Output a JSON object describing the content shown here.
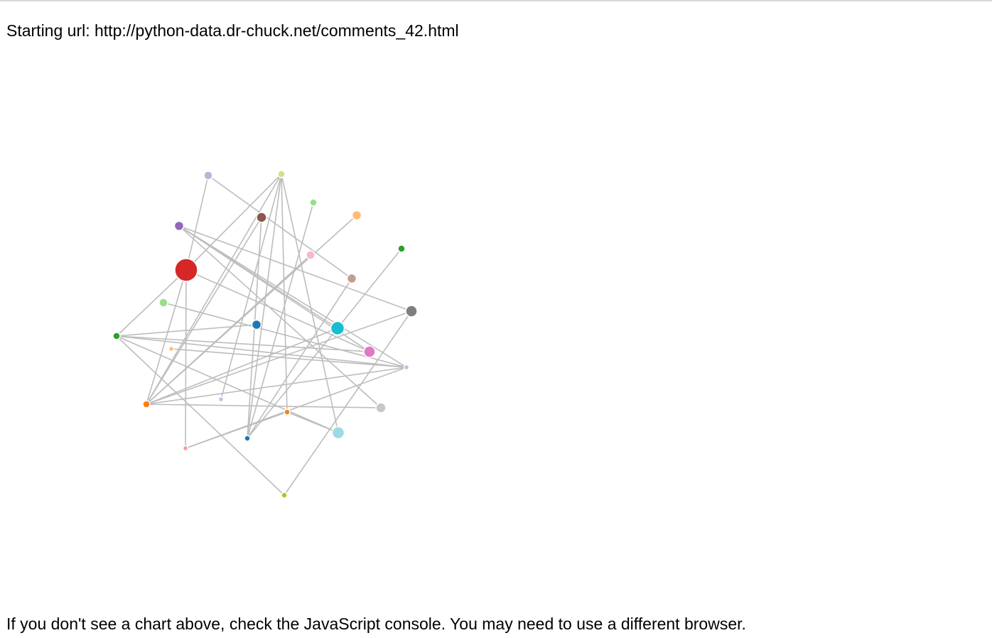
{
  "header": {
    "starting_url": "Starting url: http://python-data.dr-chuck.net/comments_42.html"
  },
  "footer": {
    "note": "If you don't see a chart above, check the JavaScript console. You may need to use a different browser."
  },
  "graph": {
    "nodes": [
      {
        "id": "n0",
        "color": "#c5b0d5",
        "size": 1.2
      },
      {
        "id": "n1",
        "color": "#dbdb8d",
        "size": 1.0
      },
      {
        "id": "n2",
        "color": "#98df8a",
        "size": 1.0
      },
      {
        "id": "n3",
        "color": "#ffbb78",
        "size": 1.3
      },
      {
        "id": "n4",
        "color": "#8c564b",
        "size": 1.4
      },
      {
        "id": "n5",
        "color": "#9467bd",
        "size": 1.3
      },
      {
        "id": "n6",
        "color": "#2ca02c",
        "size": 1.0
      },
      {
        "id": "n7",
        "color": "#f7b6d2",
        "size": 1.2
      },
      {
        "id": "n8",
        "color": "#d62728",
        "size": 3.2
      },
      {
        "id": "n9",
        "color": "#c49c94",
        "size": 1.3
      },
      {
        "id": "n10",
        "color": "#98df8a",
        "size": 1.2
      },
      {
        "id": "n11",
        "color": "#7f7f7f",
        "size": 1.6
      },
      {
        "id": "n12",
        "color": "#1f77b4",
        "size": 1.3
      },
      {
        "id": "n13",
        "color": "#17becf",
        "size": 1.9
      },
      {
        "id": "n14",
        "color": "#2ca02c",
        "size": 1.0
      },
      {
        "id": "n15",
        "color": "#ffbb78",
        "size": 0.7
      },
      {
        "id": "n16",
        "color": "#e377c2",
        "size": 1.6
      },
      {
        "id": "n17",
        "color": "#aec7e8",
        "size": 0.7
      },
      {
        "id": "n18",
        "color": "#ff7f0e",
        "size": 1.0
      },
      {
        "id": "n19",
        "color": "#aec7e8",
        "size": 0.7
      },
      {
        "id": "n20",
        "color": "#c7c7c7",
        "size": 1.4
      },
      {
        "id": "n21",
        "color": "#ff7f0e",
        "size": 0.8
      },
      {
        "id": "n22",
        "color": "#1f77b4",
        "size": 0.8
      },
      {
        "id": "n23",
        "color": "#9edae5",
        "size": 1.7
      },
      {
        "id": "n24",
        "color": "#ff9896",
        "size": 0.7
      },
      {
        "id": "n25",
        "color": "#bcbd22",
        "size": 0.8
      }
    ],
    "links": [
      [
        "n0",
        "n8"
      ],
      [
        "n0",
        "n9"
      ],
      [
        "n1",
        "n8"
      ],
      [
        "n1",
        "n18"
      ],
      [
        "n1",
        "n22"
      ],
      [
        "n1",
        "n21"
      ],
      [
        "n1",
        "n23"
      ],
      [
        "n1",
        "n17"
      ],
      [
        "n2",
        "n22"
      ],
      [
        "n3",
        "n18"
      ],
      [
        "n4",
        "n18"
      ],
      [
        "n4",
        "n22"
      ],
      [
        "n5",
        "n11"
      ],
      [
        "n5",
        "n13"
      ],
      [
        "n5",
        "n19"
      ],
      [
        "n5",
        "n20"
      ],
      [
        "n5",
        "n16"
      ],
      [
        "n6",
        "n13"
      ],
      [
        "n7",
        "n18"
      ],
      [
        "n8",
        "n16"
      ],
      [
        "n8",
        "n14"
      ],
      [
        "n8",
        "n18"
      ],
      [
        "n8",
        "n24"
      ],
      [
        "n9",
        "n22"
      ],
      [
        "n10",
        "n19"
      ],
      [
        "n11",
        "n18"
      ],
      [
        "n11",
        "n25"
      ],
      [
        "n13",
        "n18"
      ],
      [
        "n13",
        "n22"
      ],
      [
        "n14",
        "n19"
      ],
      [
        "n14",
        "n16"
      ],
      [
        "n14",
        "n12"
      ],
      [
        "n14",
        "n23"
      ],
      [
        "n18",
        "n19"
      ],
      [
        "n18",
        "n20"
      ],
      [
        "n21",
        "n24"
      ],
      [
        "n21",
        "n23"
      ],
      [
        "n24",
        "n19"
      ],
      [
        "n15",
        "n19"
      ],
      [
        "n25",
        "n14"
      ]
    ]
  }
}
